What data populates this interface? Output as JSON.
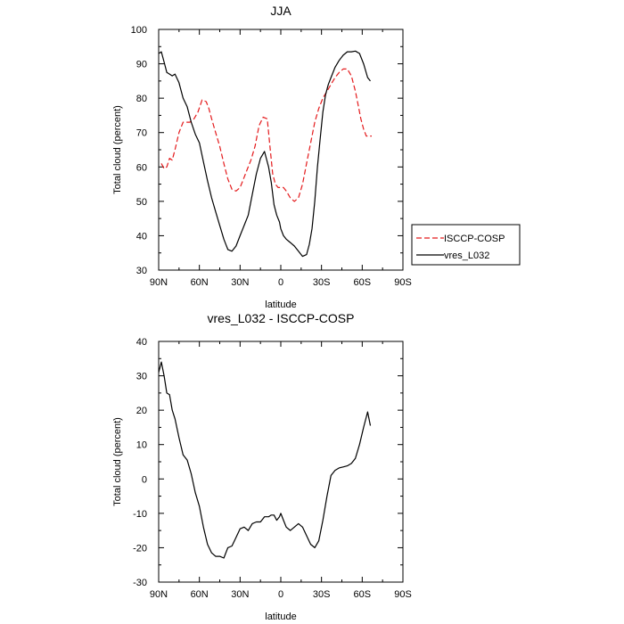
{
  "chart_data": [
    {
      "type": "line",
      "title": "JJA",
      "xlabel": "latitude",
      "ylabel": "Total cloud (percent)",
      "xlim": [
        90,
        -90
      ],
      "ylim": [
        30,
        100
      ],
      "xtick_labels": [
        "90N",
        "60N",
        "30N",
        "0",
        "30S",
        "60S",
        "90S"
      ],
      "ytick_labels": [
        "30",
        "40",
        "50",
        "60",
        "70",
        "80",
        "90",
        "100"
      ],
      "legend": {
        "placement": "right",
        "entries": [
          "ISCCP-COSP",
          "vres_L032"
        ]
      },
      "series": [
        {
          "name": "ISCCP-COSP",
          "color": "#e41a1c",
          "style": "dashed",
          "x": [
            88,
            86,
            84,
            82,
            80,
            78,
            75,
            72,
            70,
            67,
            64,
            61,
            58,
            55,
            53,
            51,
            48,
            45,
            42,
            39,
            36,
            33,
            30,
            28,
            25,
            22,
            19,
            16,
            13,
            10,
            8,
            6,
            4,
            2,
            0,
            -2,
            -4,
            -7,
            -10,
            -13,
            -16,
            -19,
            -22,
            -25,
            -28,
            -31,
            -34,
            -37,
            -40,
            -43,
            -46,
            -49,
            -52,
            -55,
            -57,
            -59,
            -61,
            -63,
            -65,
            -67
          ],
          "y": [
            61,
            59.5,
            60,
            62.5,
            62,
            65,
            70,
            73,
            73,
            73,
            74,
            76,
            79.5,
            79,
            77,
            74,
            70,
            66,
            61,
            56.5,
            53.5,
            53,
            54,
            56,
            59,
            62,
            66,
            72,
            74.5,
            74,
            66,
            58,
            55,
            54,
            54,
            54,
            53,
            51,
            50,
            51,
            55,
            61,
            67,
            73,
            77,
            80,
            82,
            84,
            86,
            87.5,
            88.5,
            88.5,
            86.5,
            82,
            78,
            74,
            71,
            69,
            69,
            69
          ]
        },
        {
          "name": "vres_L032",
          "color": "#000000",
          "style": "solid",
          "x": [
            90,
            88,
            86,
            84,
            82,
            80,
            78,
            75,
            72,
            69,
            66,
            63,
            60,
            57,
            54,
            51,
            48,
            45,
            42,
            39,
            36,
            33,
            30,
            27,
            24,
            21,
            18,
            15,
            12,
            9,
            7,
            5,
            3,
            1,
            0,
            -2,
            -4,
            -7,
            -10,
            -13,
            -16,
            -19,
            -21,
            -23,
            -25,
            -27,
            -29,
            -31,
            -33,
            -35,
            -37,
            -40,
            -43,
            -46,
            -49,
            -52,
            -55,
            -58,
            -61,
            -64,
            -66
          ],
          "y": [
            93,
            93.5,
            90.5,
            87.5,
            87,
            86.5,
            87,
            84.5,
            80,
            77.5,
            73,
            69.5,
            67,
            61.5,
            56,
            51,
            47,
            43,
            39,
            36,
            35.5,
            37,
            40,
            43,
            46,
            52,
            58,
            62.5,
            64.5,
            60,
            55.5,
            49,
            46,
            44,
            42,
            40,
            39,
            38,
            37,
            35.5,
            34,
            34.5,
            37.5,
            42,
            50,
            60,
            68,
            76,
            81,
            84,
            86,
            89,
            91,
            92.5,
            93.5,
            93.5,
            93.7,
            93,
            90,
            86,
            85
          ]
        }
      ]
    },
    {
      "type": "line",
      "title": "vres_L032 - ISCCP-COSP",
      "xlabel": "latitude",
      "ylabel": "Total cloud (percent)",
      "xlim": [
        90,
        -90
      ],
      "ylim": [
        -30,
        40
      ],
      "xtick_labels": [
        "90N",
        "60N",
        "30N",
        "0",
        "30S",
        "60S",
        "90S"
      ],
      "ytick_labels": [
        "-30",
        "-20",
        "-10",
        "0",
        "10",
        "20",
        "30",
        "40"
      ],
      "series": [
        {
          "color": "#000000",
          "style": "solid",
          "x": [
            90,
            88,
            86,
            84,
            82,
            80,
            78,
            75,
            72,
            69,
            66,
            63,
            60,
            57,
            54,
            51,
            48,
            45,
            42,
            39,
            36,
            33,
            30,
            27,
            24,
            21,
            18,
            15,
            12,
            9,
            7,
            5,
            3,
            1,
            0,
            -2,
            -4,
            -7,
            -10,
            -13,
            -16,
            -19,
            -22,
            -25,
            -28,
            -31,
            -34,
            -37,
            -40,
            -43,
            -46,
            -49,
            -52,
            -55,
            -58,
            -61,
            -64,
            -66
          ],
          "y": [
            31,
            34,
            30,
            25,
            24.5,
            20,
            17.5,
            12,
            7,
            5.5,
            1.5,
            -4,
            -8,
            -14,
            -19,
            -21.5,
            -22.5,
            -22.5,
            -23,
            -20,
            -19.5,
            -17,
            -14.5,
            -14,
            -15,
            -13,
            -12.5,
            -12.5,
            -11,
            -11,
            -10.5,
            -10.5,
            -12,
            -11,
            -10,
            -12,
            -14,
            -15,
            -14,
            -13,
            -14,
            -16.5,
            -19,
            -20,
            -18,
            -12,
            -5,
            1,
            2.5,
            3.2,
            3.5,
            3.8,
            4.5,
            6,
            10,
            15,
            19.5,
            15.5
          ]
        }
      ]
    }
  ]
}
